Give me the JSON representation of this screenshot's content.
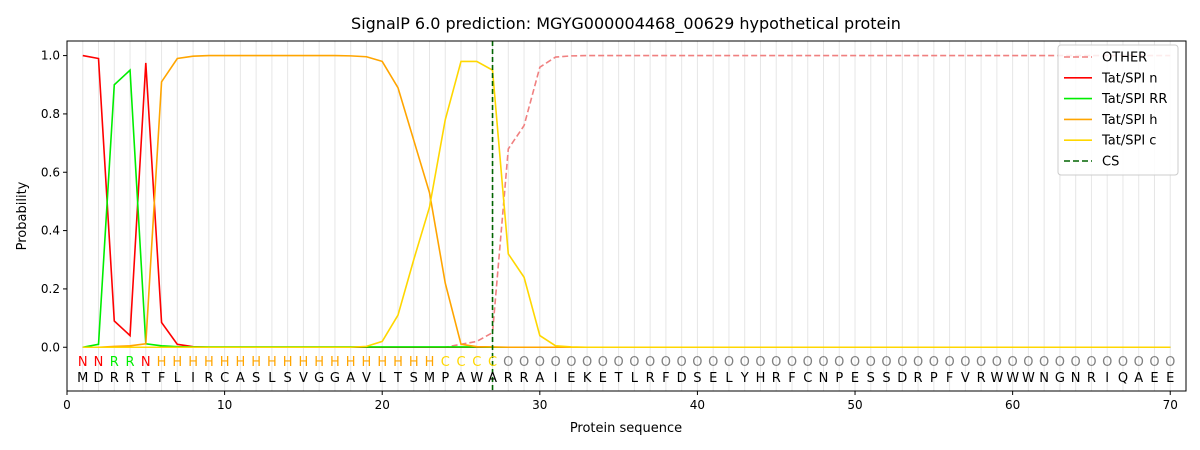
{
  "chart_data": {
    "type": "line",
    "title": "SignalP 6.0 prediction: MGYG000004468_00629 hypothetical protein",
    "xlabel": "Protein sequence",
    "ylabel": "Probability",
    "xlim": [
      0,
      71
    ],
    "ylim": [
      -0.15,
      1.05
    ],
    "xticks": [
      0,
      10,
      20,
      30,
      40,
      50,
      60,
      70
    ],
    "yticks": [
      0.0,
      0.2,
      0.4,
      0.6,
      0.8,
      1.0
    ],
    "xtick_labels": [
      "0",
      "10",
      "20",
      "30",
      "40",
      "50",
      "60",
      "70"
    ],
    "ytick_labels": [
      "0.0",
      "0.2",
      "0.4",
      "0.6",
      "0.8",
      "1.0"
    ],
    "grid": "vertical lines at each residue",
    "legend_position": "top-right",
    "residues": [
      "M",
      "D",
      "R",
      "R",
      "T",
      "F",
      "L",
      "I",
      "R",
      "C",
      "A",
      "S",
      "L",
      "S",
      "V",
      "G",
      "G",
      "A",
      "V",
      "L",
      "T",
      "S",
      "M",
      "P",
      "A",
      "W",
      "A",
      "R",
      "R",
      "A",
      "I",
      "E",
      "K",
      "E",
      "T",
      "L",
      "R",
      "F",
      "D",
      "S",
      "E",
      "L",
      "Y",
      "H",
      "R",
      "F",
      "C",
      "N",
      "P",
      "E",
      "S",
      "S",
      "D",
      "R",
      "P",
      "F",
      "V",
      "R",
      "W",
      "W",
      "W",
      "N",
      "G",
      "N",
      "R",
      "I",
      "Q",
      "A",
      "E",
      "E"
    ],
    "region_labels": [
      "N",
      "N",
      "R",
      "R",
      "N",
      "H",
      "H",
      "H",
      "H",
      "H",
      "H",
      "H",
      "H",
      "H",
      "H",
      "H",
      "H",
      "H",
      "H",
      "H",
      "H",
      "H",
      "H",
      "C",
      "C",
      "C",
      "C",
      "O",
      "O",
      "O",
      "O",
      "O",
      "O",
      "O",
      "O",
      "O",
      "O",
      "O",
      "O",
      "O",
      "O",
      "O",
      "O",
      "O",
      "O",
      "O",
      "O",
      "O",
      "O",
      "O",
      "O",
      "O",
      "O",
      "O",
      "O",
      "O",
      "O",
      "O",
      "O",
      "O",
      "O",
      "O",
      "O",
      "O",
      "O",
      "O",
      "O",
      "O",
      "O",
      "O"
    ],
    "region_colors": {
      "N": "#ff0000",
      "R": "#00ee00",
      "H": "#ffa500",
      "C": "#ffd700",
      "O": "#808080"
    },
    "cleavage_site": 27,
    "series": [
      {
        "name": "OTHER",
        "color": "#f08080",
        "dash": true,
        "values": [
          0,
          0,
          0,
          0,
          0,
          0,
          0,
          0,
          0,
          0,
          0,
          0,
          0,
          0,
          0,
          0,
          0,
          0,
          0,
          0,
          0,
          0,
          0,
          0,
          0.01,
          0.02,
          0.05,
          0.68,
          0.76,
          0.96,
          0.995,
          0.999,
          1,
          1,
          1,
          1,
          1,
          1,
          1,
          1,
          1,
          1,
          1,
          1,
          1,
          1,
          1,
          1,
          1,
          1,
          1,
          1,
          1,
          1,
          1,
          1,
          1,
          1,
          1,
          1,
          1,
          1,
          1,
          1,
          1,
          1,
          1,
          1,
          1,
          1
        ]
      },
      {
        "name": "Tat/SPI n",
        "color": "#ff0000",
        "dash": false,
        "values": [
          1.0,
          0.99,
          0.09,
          0.04,
          0.975,
          0.085,
          0.01,
          0.002,
          0,
          0,
          0,
          0,
          0,
          0,
          0,
          0,
          0,
          0,
          0,
          0,
          0,
          0,
          0,
          0,
          0,
          0,
          0,
          0,
          0,
          0,
          0,
          0,
          0,
          0,
          0,
          0,
          0,
          0,
          0,
          0,
          0,
          0,
          0,
          0,
          0,
          0,
          0,
          0,
          0,
          0,
          0,
          0,
          0,
          0,
          0,
          0,
          0,
          0,
          0,
          0,
          0,
          0,
          0,
          0,
          0,
          0,
          0,
          0,
          0,
          0
        ]
      },
      {
        "name": "Tat/SPI RR",
        "color": "#00ee00",
        "dash": false,
        "values": [
          0,
          0.01,
          0.9,
          0.95,
          0.012,
          0.005,
          0.002,
          0.001,
          0.001,
          0.001,
          0.001,
          0.001,
          0.001,
          0.001,
          0.001,
          0.001,
          0.001,
          0.001,
          0.001,
          0.001,
          0.001,
          0.001,
          0.001,
          0.001,
          0.001,
          0.001,
          0,
          0,
          0,
          0,
          0,
          0,
          0,
          0,
          0,
          0,
          0,
          0,
          0,
          0,
          0,
          0,
          0,
          0,
          0,
          0,
          0,
          0,
          0,
          0,
          0,
          0,
          0,
          0,
          0,
          0,
          0,
          0,
          0,
          0,
          0,
          0,
          0,
          0,
          0,
          0,
          0,
          0,
          0,
          0
        ]
      },
      {
        "name": "Tat/SPI h",
        "color": "#ffa500",
        "dash": false,
        "values": [
          0,
          0,
          0.003,
          0.005,
          0.012,
          0.91,
          0.99,
          0.998,
          1,
          1,
          1,
          1,
          1,
          1,
          1,
          1,
          1,
          0.999,
          0.996,
          0.98,
          0.89,
          0.71,
          0.53,
          0.22,
          0.01,
          0.002,
          0.001,
          0,
          0,
          0,
          0,
          0,
          0,
          0,
          0,
          0,
          0,
          0,
          0,
          0,
          0,
          0,
          0,
          0,
          0,
          0,
          0,
          0,
          0,
          0,
          0,
          0,
          0,
          0,
          0,
          0,
          0,
          0,
          0,
          0,
          0,
          0,
          0,
          0,
          0,
          0,
          0,
          0,
          0,
          0
        ]
      },
      {
        "name": "Tat/SPI c",
        "color": "#ffd700",
        "dash": false,
        "values": [
          0,
          0,
          0,
          0,
          0,
          0,
          0,
          0,
          0,
          0,
          0,
          0,
          0,
          0,
          0,
          0,
          0,
          0,
          0.003,
          0.02,
          0.11,
          0.3,
          0.48,
          0.78,
          0.98,
          0.98,
          0.95,
          0.32,
          0.24,
          0.04,
          0.005,
          0.001,
          0,
          0,
          0,
          0,
          0,
          0,
          0,
          0,
          0,
          0,
          0,
          0,
          0,
          0,
          0,
          0,
          0,
          0,
          0,
          0,
          0,
          0,
          0,
          0,
          0,
          0,
          0,
          0,
          0,
          0,
          0,
          0,
          0,
          0,
          0,
          0,
          0,
          0
        ]
      },
      {
        "name": "CS",
        "color": "#006400",
        "dash": true,
        "values": []
      }
    ]
  }
}
